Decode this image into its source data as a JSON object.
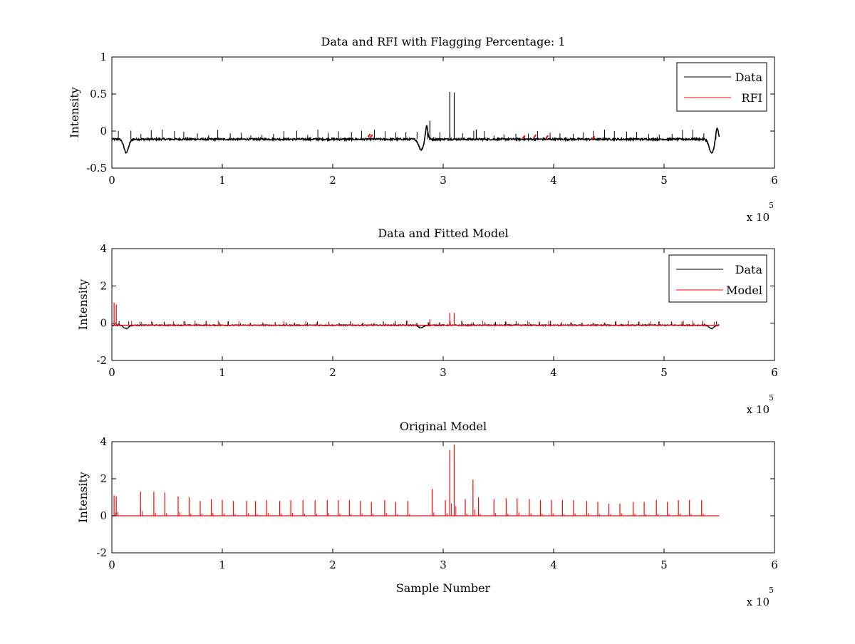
{
  "chart_data": [
    {
      "type": "line",
      "title": "Data and RFI with Flagging Percentage: 1",
      "xlabel": "",
      "ylabel": "Intensity",
      "xlim": [
        0,
        6
      ],
      "ylim": [
        -0.5,
        1
      ],
      "x_multiplier": "x 10",
      "x_multiplier_exp": "5",
      "x_ticks": [
        "0",
        "1",
        "2",
        "3",
        "4",
        "5",
        "6"
      ],
      "y_ticks": [
        "-0.5",
        "0",
        "0.5",
        "1"
      ],
      "legend_position": "top-right",
      "grid": false,
      "colors": {
        "Data": "#000000",
        "RFI": "#ff0000"
      },
      "series": [
        {
          "name": "Data",
          "baseline": -0.11,
          "x_end": 5.5,
          "dips": [
            [
              0.13,
              -0.29
            ],
            [
              2.8,
              -0.25
            ],
            [
              5.43,
              -0.3
            ]
          ],
          "bumps": [
            [
              2.85,
              0.08
            ],
            [
              5.48,
              0.05
            ]
          ],
          "spikes": [
            [
              3.06,
              0.53
            ],
            [
              3.1,
              0.52
            ],
            [
              2.88,
              0.14
            ],
            [
              3.3,
              0.02
            ]
          ]
        },
        {
          "name": "RFI",
          "segments": [
            [
              2.32,
              -0.06
            ],
            [
              2.34,
              -0.07
            ],
            [
              3.72,
              -0.08
            ],
            [
              3.82,
              -0.07
            ],
            [
              3.93,
              -0.08
            ],
            [
              4.35,
              -0.09
            ]
          ]
        }
      ]
    },
    {
      "type": "line",
      "title": "Data and Fitted Model",
      "xlabel": "",
      "ylabel": "Intensity",
      "xlim": [
        0,
        6
      ],
      "ylim": [
        -2,
        4
      ],
      "x_multiplier": "x 10",
      "x_multiplier_exp": "5",
      "x_ticks": [
        "0",
        "1",
        "2",
        "3",
        "4",
        "5",
        "6"
      ],
      "y_ticks": [
        "-2",
        "0",
        "2",
        "4"
      ],
      "legend_position": "top-right",
      "grid": false,
      "colors": {
        "Data": "#000000",
        "Model": "#ff0000"
      },
      "series": [
        {
          "name": "Data",
          "baseline": -0.11,
          "x_end": 5.5,
          "dips": [
            [
              0.13,
              -0.29
            ],
            [
              2.8,
              -0.25
            ],
            [
              5.43,
              -0.3
            ]
          ]
        },
        {
          "name": "Model",
          "baseline": -0.11,
          "x_end": 5.5,
          "spikes": [
            [
              0.02,
              1.1
            ],
            [
              0.04,
              1.0
            ],
            [
              3.06,
              0.55
            ],
            [
              3.1,
              0.55
            ],
            [
              2.88,
              0.2
            ]
          ]
        }
      ]
    },
    {
      "type": "line",
      "title": "Original Model",
      "xlabel": "Sample Number",
      "ylabel": "Intensity",
      "xlim": [
        0,
        6
      ],
      "ylim": [
        -2,
        4
      ],
      "x_multiplier": "x 10",
      "x_multiplier_exp": "5",
      "x_ticks": [
        "0",
        "1",
        "2",
        "3",
        "4",
        "5",
        "6"
      ],
      "y_ticks": [
        "-2",
        "0",
        "2",
        "4"
      ],
      "grid": false,
      "colors": {
        "Model": "#ff0000"
      },
      "series": [
        {
          "name": "",
          "baseline": 0,
          "x_end": 5.5,
          "spikes": [
            [
              0.02,
              1.1
            ],
            [
              0.04,
              1.05
            ],
            [
              0.26,
              1.3
            ],
            [
              0.38,
              1.3
            ],
            [
              0.48,
              1.25
            ],
            [
              0.6,
              1.05
            ],
            [
              0.7,
              1.0
            ],
            [
              0.8,
              0.8
            ],
            [
              0.9,
              0.9
            ],
            [
              1.0,
              0.85
            ],
            [
              1.1,
              0.8
            ],
            [
              1.22,
              0.8
            ],
            [
              1.3,
              0.8
            ],
            [
              1.4,
              0.85
            ],
            [
              1.52,
              0.8
            ],
            [
              1.62,
              0.85
            ],
            [
              1.73,
              0.85
            ],
            [
              1.84,
              0.85
            ],
            [
              1.95,
              0.85
            ],
            [
              2.05,
              0.85
            ],
            [
              2.15,
              0.85
            ],
            [
              2.25,
              0.8
            ],
            [
              2.35,
              0.75
            ],
            [
              2.47,
              0.85
            ],
            [
              2.57,
              0.75
            ],
            [
              2.68,
              0.8
            ],
            [
              2.9,
              1.45
            ],
            [
              3.02,
              0.85
            ],
            [
              3.06,
              3.55
            ],
            [
              3.1,
              3.85
            ],
            [
              3.2,
              0.9
            ],
            [
              3.27,
              1.95
            ],
            [
              3.32,
              1.0
            ],
            [
              3.46,
              0.9
            ],
            [
              3.57,
              0.95
            ],
            [
              3.67,
              0.95
            ],
            [
              3.78,
              0.9
            ],
            [
              3.88,
              0.85
            ],
            [
              3.98,
              0.85
            ],
            [
              4.08,
              0.85
            ],
            [
              4.18,
              0.85
            ],
            [
              4.3,
              0.8
            ],
            [
              4.4,
              0.75
            ],
            [
              4.5,
              0.65
            ],
            [
              4.6,
              0.65
            ],
            [
              4.72,
              0.75
            ],
            [
              4.82,
              0.75
            ],
            [
              4.93,
              0.85
            ],
            [
              5.03,
              0.75
            ],
            [
              5.13,
              0.85
            ],
            [
              5.23,
              0.85
            ],
            [
              5.34,
              0.85
            ]
          ]
        }
      ]
    }
  ]
}
